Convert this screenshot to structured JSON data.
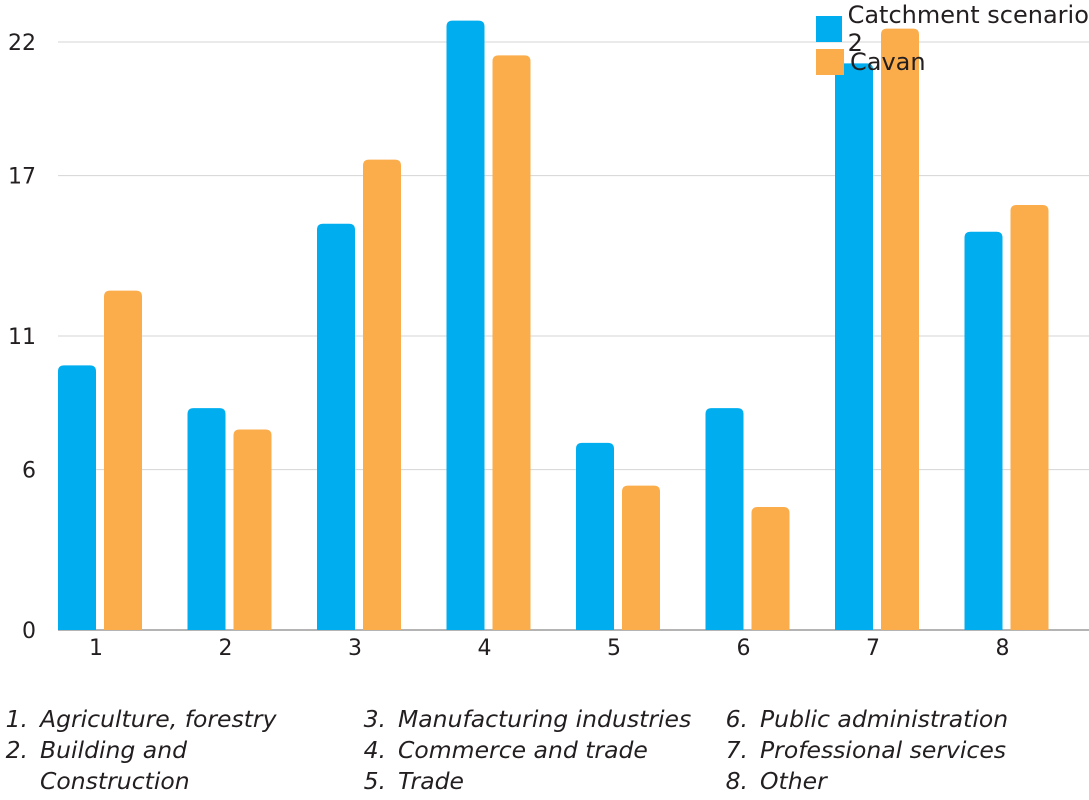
{
  "chart_data": {
    "type": "bar",
    "categories": [
      "1",
      "2",
      "3",
      "4",
      "5",
      "6",
      "7",
      "8"
    ],
    "series": [
      {
        "name": "Catchment scenario 2",
        "color": "#00aeef",
        "values": [
          9.9,
          8.3,
          15.2,
          22.8,
          7.0,
          8.3,
          21.2,
          14.9
        ]
      },
      {
        "name": "Cavan",
        "color": "#fbad4c",
        "values": [
          12.7,
          7.5,
          17.6,
          21.5,
          5.4,
          4.6,
          22.5,
          15.9
        ]
      }
    ],
    "yticks": [
      "0",
      "6",
      "11",
      "17",
      "22"
    ],
    "ylim": [
      0,
      24
    ],
    "grid": true,
    "legend_position": "top-right"
  },
  "category_descriptions": [
    {
      "num": "1.",
      "text": "Agriculture, forestry"
    },
    {
      "num": "2.",
      "text": "Building and\nConstruction"
    },
    {
      "num": "3.",
      "text": "Manufacturing industries"
    },
    {
      "num": "4.",
      "text": "Commerce and trade"
    },
    {
      "num": "5.",
      "text": "Trade"
    },
    {
      "num": "6.",
      "text": "Public administration"
    },
    {
      "num": "7.",
      "text": "Professional services"
    },
    {
      "num": "8.",
      "text": "Other"
    }
  ]
}
